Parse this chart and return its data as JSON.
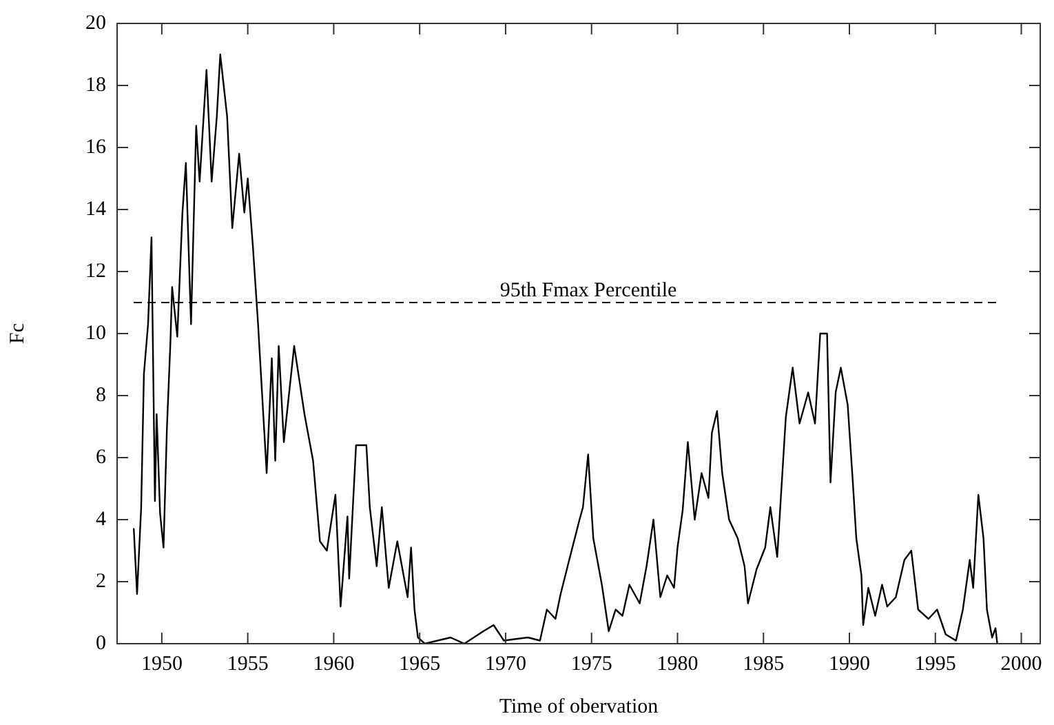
{
  "chart_data": {
    "type": "line",
    "xlabel": "Time of obervation",
    "ylabel": "Fc",
    "xlim": [
      1947.4,
      2001.1
    ],
    "ylim": [
      0,
      20
    ],
    "xticks": [
      1950,
      1955,
      1960,
      1965,
      1970,
      1975,
      1980,
      1985,
      1990,
      1995,
      2000
    ],
    "yticks": [
      0,
      2,
      4,
      6,
      8,
      10,
      12,
      14,
      16,
      18,
      20
    ],
    "grid": false,
    "legend": false,
    "marker": "none",
    "line_style": "solid",
    "ref_lines": [
      {
        "axis": "y",
        "value": 11,
        "label": "95th Fmax Percentile",
        "line_style": "dashed",
        "color": "#000000"
      }
    ],
    "series": [
      {
        "color": "#000000",
        "x": [
          1948.37,
          1948.56,
          1948.8,
          1948.96,
          1949.2,
          1949.4,
          1949.6,
          1949.7,
          1949.9,
          1950.1,
          1950.3,
          1950.5,
          1950.6,
          1950.9,
          1951.2,
          1951.4,
          1951.7,
          1952.0,
          1952.2,
          1952.6,
          1952.9,
          1953.2,
          1953.4,
          1953.8,
          1954.1,
          1954.5,
          1954.8,
          1955.0,
          1955.3,
          1955.6,
          1956.1,
          1956.4,
          1956.6,
          1956.8,
          1957.1,
          1957.7,
          1958.3,
          1958.8,
          1959.2,
          1959.6,
          1960.1,
          1960.4,
          1960.8,
          1960.9,
          1961.3,
          1961.5,
          1961.9,
          1962.1,
          1962.5,
          1962.8,
          1963.2,
          1963.7,
          1964.3,
          1964.5,
          1964.7,
          1964.9,
          1965.3,
          1966.8,
          1967.6,
          1968.7,
          1969.3,
          1969.9,
          1971.3,
          1972.0,
          1972.4,
          1972.9,
          1973.2,
          1973.7,
          1974.3,
          1974.5,
          1974.8,
          1975.1,
          1975.6,
          1976.0,
          1976.4,
          1976.8,
          1977.2,
          1977.8,
          1978.2,
          1978.6,
          1979.0,
          1979.4,
          1979.8,
          1980.0,
          1980.3,
          1980.6,
          1981.0,
          1981.4,
          1981.8,
          1982.0,
          1982.3,
          1982.6,
          1983.0,
          1983.5,
          1983.9,
          1984.1,
          1984.6,
          1985.1,
          1985.4,
          1985.8,
          1986.0,
          1986.3,
          1986.7,
          1987.1,
          1987.6,
          1988.0,
          1988.3,
          1988.7,
          1988.9,
          1989.2,
          1989.5,
          1989.9,
          1990.2,
          1990.4,
          1990.7,
          1990.8,
          1991.1,
          1991.5,
          1991.9,
          1992.2,
          1992.7,
          1993.2,
          1993.6,
          1994.0,
          1994.6,
          1995.1,
          1995.6,
          1996.2,
          1996.6,
          1997.0,
          1997.2,
          1997.5,
          1997.8,
          1998.0,
          1998.3,
          1998.5,
          1998.6
        ],
        "values": [
          3.7,
          1.6,
          4.4,
          8.7,
          10.3,
          13.1,
          4.6,
          7.4,
          4.2,
          3.1,
          7.0,
          9.7,
          11.5,
          9.9,
          13.9,
          15.5,
          10.3,
          16.7,
          14.9,
          18.5,
          14.9,
          17.0,
          19.0,
          17.0,
          13.4,
          15.8,
          13.9,
          15.0,
          12.8,
          10.3,
          5.5,
          9.2,
          5.9,
          9.6,
          6.5,
          9.6,
          7.4,
          5.9,
          3.3,
          3.0,
          4.8,
          1.2,
          4.1,
          2.1,
          6.4,
          6.4,
          6.4,
          4.4,
          2.5,
          4.4,
          1.8,
          3.3,
          1.5,
          3.1,
          1.1,
          0.2,
          0,
          0.2,
          0,
          0.4,
          0.6,
          0.1,
          0.2,
          0.1,
          1.1,
          0.8,
          1.6,
          2.7,
          4.0,
          4.4,
          6.1,
          3.4,
          1.9,
          0.4,
          1.1,
          0.9,
          1.9,
          1.3,
          2.5,
          4.0,
          1.5,
          2.2,
          1.8,
          3.1,
          4.3,
          6.5,
          4.0,
          5.5,
          4.7,
          6.8,
          7.5,
          5.5,
          4.0,
          3.4,
          2.5,
          1.3,
          2.4,
          3.1,
          4.4,
          2.8,
          4.6,
          7.3,
          8.9,
          7.1,
          8.1,
          7.1,
          10.0,
          10.0,
          5.2,
          8.1,
          8.9,
          7.7,
          5.2,
          3.4,
          2.2,
          0.6,
          1.8,
          0.9,
          1.9,
          1.2,
          1.5,
          2.7,
          3.0,
          1.1,
          0.8,
          1.1,
          0.3,
          0.1,
          1.1,
          2.7,
          1.8,
          4.8,
          3.4,
          1.1,
          0.2,
          0.5,
          0
        ]
      }
    ]
  }
}
